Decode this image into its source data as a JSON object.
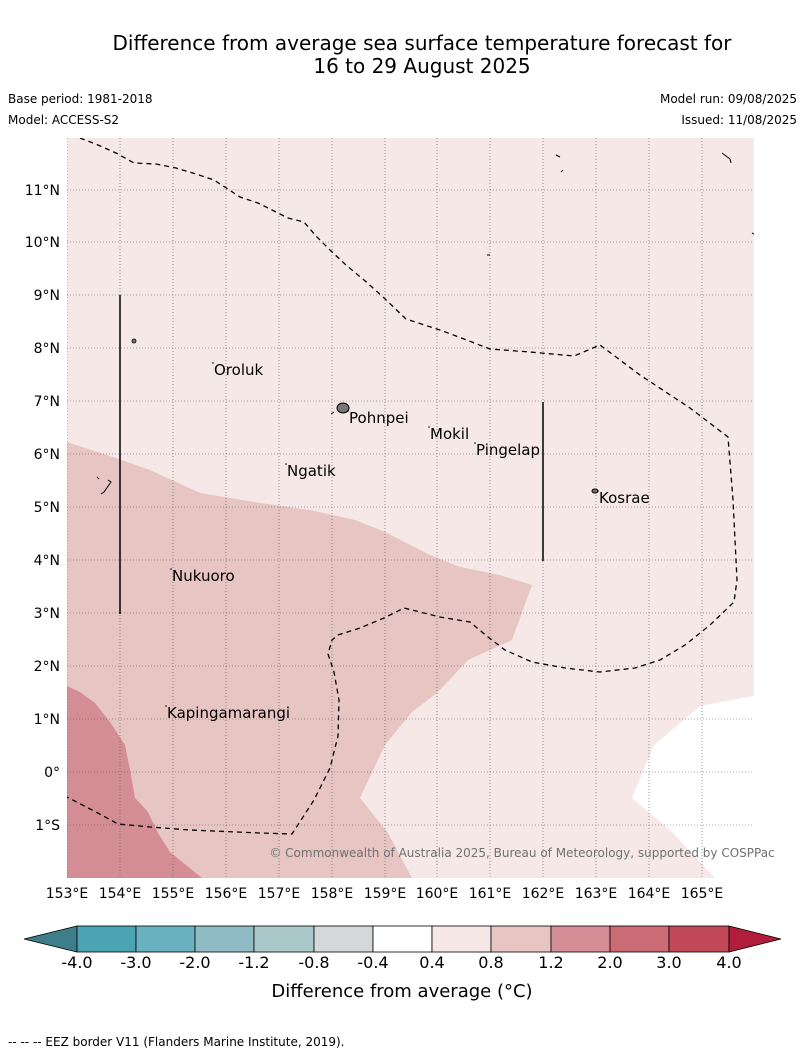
{
  "title": {
    "line1": "Difference from average sea surface temperature forecast for",
    "line2": "16 to 29 August 2025"
  },
  "meta": {
    "base_period": "Base period: 1981-2018",
    "model": "Model: ACCESS-S2",
    "model_run": "Model run: 09/08/2025",
    "issued": "Issued: 11/08/2025"
  },
  "map": {
    "lon_ticks": [
      "153°E",
      "154°E",
      "155°E",
      "156°E",
      "157°E",
      "158°E",
      "159°E",
      "160°E",
      "161°E",
      "162°E",
      "163°E",
      "164°E",
      "165°E"
    ],
    "lat_ticks": [
      "11°N",
      "10°N",
      "9°N",
      "8°N",
      "7°N",
      "6°N",
      "5°N",
      "4°N",
      "3°N",
      "2°N",
      "1°N",
      "0°",
      "1°S"
    ],
    "places": [
      {
        "name": "Oroluk"
      },
      {
        "name": "Pohnpei"
      },
      {
        "name": "Mokil"
      },
      {
        "name": "Pingelap"
      },
      {
        "name": "Ngatik"
      },
      {
        "name": "Kosrae"
      },
      {
        "name": "Nukuoro"
      },
      {
        "name": "Kapingamarangi"
      }
    ],
    "copyright": "© Commonwealth of Australia 2025, Bureau of Meteorology, supported by COSPPac",
    "colors": {
      "anom_0_4_to_0_8": "#f5e8e7",
      "anom_0_8_to_1_2": "#e7c5c2",
      "anom_1_2_to_2_0": "#d58d95",
      "below_0_4": "#ffffff"
    }
  },
  "colorbar": {
    "ticks": [
      "-4.0",
      "-3.0",
      "-2.0",
      "-1.2",
      "-0.8",
      "-0.4",
      "0.4",
      "0.8",
      "1.2",
      "2.0",
      "3.0",
      "4.0"
    ],
    "colors": [
      "#3d7e8a",
      "#4aa4b4",
      "#6ab2c0",
      "#8fbbc5",
      "#abc8cb",
      "#d4d8d8",
      "#ffffff",
      "#f5e8e7",
      "#e7c5c2",
      "#d58d95",
      "#cb6b75",
      "#c04858",
      "#b01e3c"
    ],
    "label": "Difference from average (°C)"
  },
  "footnote": "--  --  -- EEZ border V11 (Flanders Marine Institute, 2019)."
}
